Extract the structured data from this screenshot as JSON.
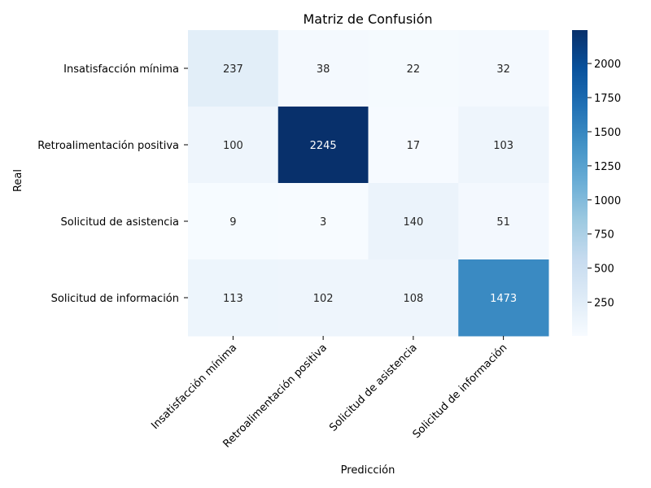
{
  "chart_data": {
    "type": "heatmap",
    "title": "Matriz de Confusión",
    "xlabel": "Predicción",
    "ylabel": "Real",
    "row_labels": [
      "Insatisfacción mínima",
      "Retroalimentación positiva",
      "Solicitud  de asistencia",
      "Solicitud de información"
    ],
    "col_labels": [
      "Insatisfacción mínima",
      "Retroalimentación positiva",
      "Solicitud  de asistencia",
      "Solicitud de información"
    ],
    "values": [
      [
        237,
        38,
        22,
        32
      ],
      [
        100,
        2245,
        17,
        103
      ],
      [
        9,
        3,
        140,
        51
      ],
      [
        113,
        102,
        108,
        1473
      ]
    ],
    "colormap": "Blues",
    "colorbar": {
      "range": [
        3,
        2245
      ],
      "ticks": [
        250,
        500,
        750,
        1000,
        1250,
        1500,
        1750,
        2000
      ]
    }
  }
}
